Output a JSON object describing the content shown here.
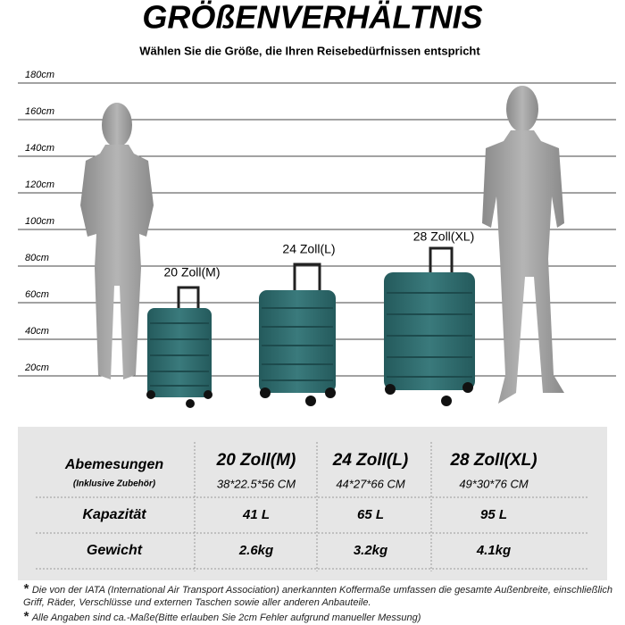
{
  "header": {
    "title": "GRÖßENVERHÄLTNIS",
    "subtitle": "Wählen Sie die Größe, die Ihren Reisebedürfnissen entspricht"
  },
  "scale": [
    "180cm",
    "160cm",
    "140cm",
    "120cm",
    "100cm",
    "80cm",
    "60cm",
    "40cm",
    "20cm"
  ],
  "sizes": [
    "20 Zoll(M)",
    "24 Zoll(L)",
    "28 Zoll(XL)"
  ],
  "table": {
    "header": {
      "label": "Abemesungen",
      "sublabel": "(Inklusive Zubehör)"
    },
    "columns": [
      {
        "name": "20 Zoll(M)",
        "dimensions": "38*22.5*56 CM"
      },
      {
        "name": "24 Zoll(L)",
        "dimensions": "44*27*66 CM"
      },
      {
        "name": "28 Zoll(XL)",
        "dimensions": "49*30*76 CM"
      }
    ],
    "rows": [
      {
        "label": "Kapazität",
        "values": [
          "41 L",
          "65 L",
          "95 L"
        ]
      },
      {
        "label": "Gewicht",
        "values": [
          "2.6kg",
          "3.2kg",
          "4.1kg"
        ]
      }
    ]
  },
  "notes": [
    {
      "marker": "*",
      "text": "Die von der IATA (International Air Transport Association) anerkannten Koffermaße umfassen die gesamte Außenbreite, einschließlich Griff, Räder, Verschlüsse und externen Taschen sowie aller anderen Anbauteile."
    },
    {
      "marker": "*",
      "text": "Alle Angaben sind ca.-Maße(Bitte erlauben Sie 2cm Fehler aufgrund manueller Messung)"
    }
  ]
}
